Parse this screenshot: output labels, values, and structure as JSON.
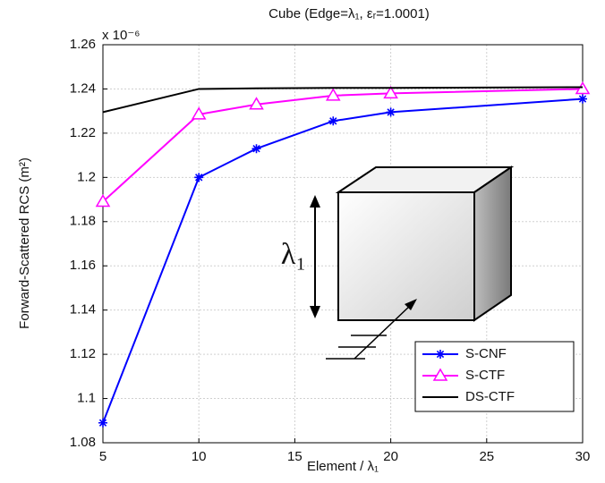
{
  "chart_data": {
    "type": "line",
    "title": "Cube (Edge=λ₁, εᵣ=1.0001)",
    "y_multiplier": "x 10⁻⁶",
    "x_label": "Element / λ₁",
    "y_label": "Forward-Scattered RCS (m²)",
    "annotation": "λ₁",
    "x": [
      5,
      10,
      13,
      17,
      20,
      30
    ],
    "series": [
      {
        "name": "S-CNF",
        "color": "#0000ff",
        "marker": "asterisk",
        "values": [
          1.089,
          1.2,
          1.213,
          1.2255,
          1.2295,
          1.2355
        ]
      },
      {
        "name": "S-CTF",
        "color": "#ff00ff",
        "marker": "triangle",
        "values": [
          1.189,
          1.2285,
          1.233,
          1.237,
          1.238,
          1.24
        ]
      },
      {
        "name": "DS-CTF",
        "color": "#000000",
        "marker": "none",
        "values": [
          1.2295,
          1.24,
          1.2403,
          1.2405,
          1.2405,
          1.2408
        ]
      }
    ],
    "xlim": [
      5,
      30
    ],
    "xticks": [
      5,
      10,
      15,
      20,
      25,
      30
    ],
    "ylim": [
      1.08,
      1.26
    ],
    "yticks": [
      1.08,
      1.1,
      1.12,
      1.14,
      1.16,
      1.18,
      1.2,
      1.22,
      1.24,
      1.26
    ],
    "grid": true,
    "legend": "lower right"
  }
}
